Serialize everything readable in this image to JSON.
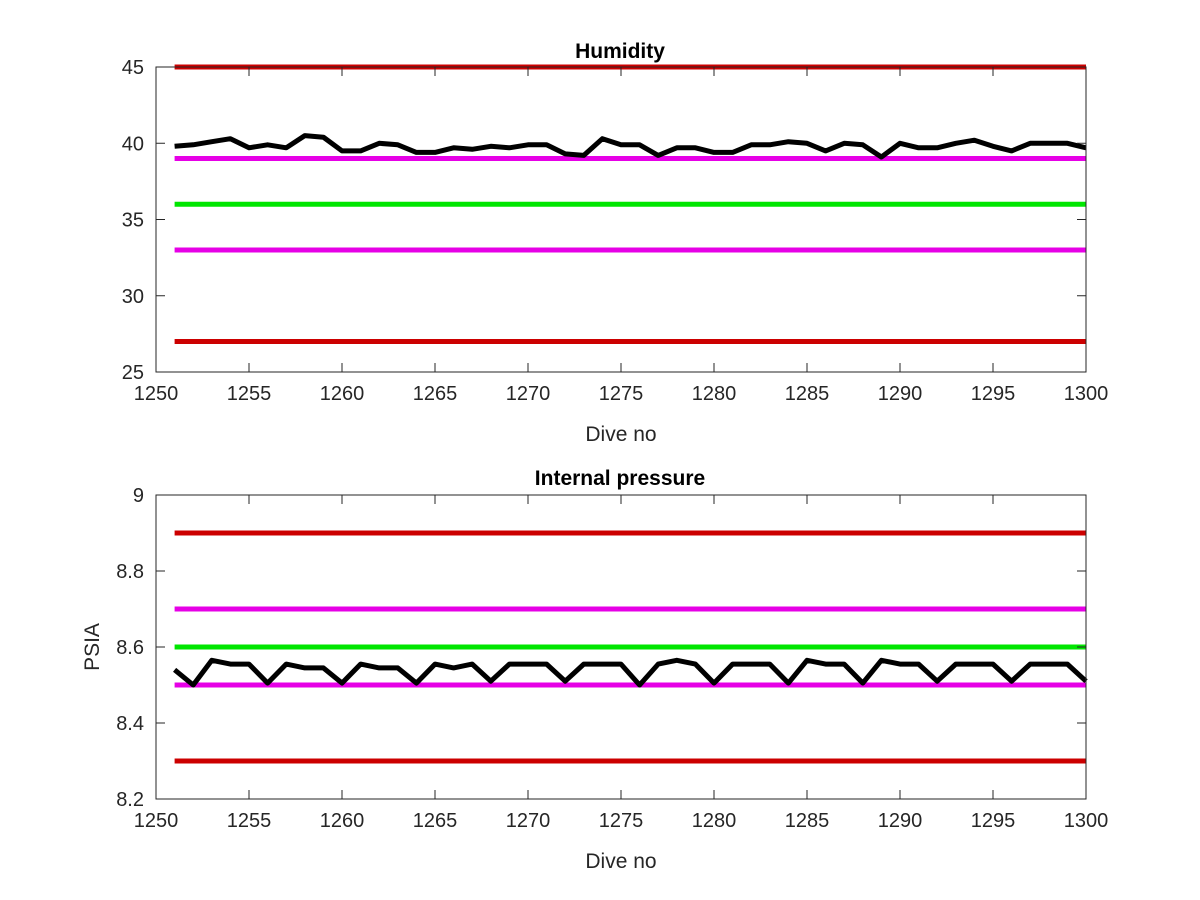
{
  "chart_data": [
    {
      "type": "line",
      "title": "Humidity",
      "xlabel": "Dive no",
      "ylabel": "",
      "xlim": [
        1250,
        1300
      ],
      "ylim": [
        25,
        45
      ],
      "xticks": [
        1250,
        1255,
        1260,
        1265,
        1270,
        1275,
        1280,
        1285,
        1290,
        1295,
        1300
      ],
      "yticks": [
        25,
        30,
        35,
        40,
        45
      ],
      "grid": false,
      "reference_lines": [
        {
          "y": 45,
          "color": "#cc0000"
        },
        {
          "y": 39,
          "color": "#e600e6"
        },
        {
          "y": 36,
          "color": "#00e600"
        },
        {
          "y": 33,
          "color": "#e600e6"
        },
        {
          "y": 27,
          "color": "#cc0000"
        }
      ],
      "series": [
        {
          "color": "#000000",
          "x": [
            1251,
            1252,
            1253,
            1254,
            1255,
            1256,
            1257,
            1258,
            1259,
            1260,
            1261,
            1262,
            1263,
            1264,
            1265,
            1266,
            1267,
            1268,
            1269,
            1270,
            1271,
            1272,
            1273,
            1274,
            1275,
            1276,
            1277,
            1278,
            1279,
            1280,
            1281,
            1282,
            1283,
            1284,
            1285,
            1286,
            1287,
            1288,
            1289,
            1290,
            1291,
            1292,
            1293,
            1294,
            1295,
            1296,
            1297,
            1298,
            1299,
            1300
          ],
          "values": [
            39.8,
            39.9,
            40.1,
            40.3,
            39.7,
            39.9,
            39.7,
            40.5,
            40.4,
            39.5,
            39.5,
            40.0,
            39.9,
            39.4,
            39.4,
            39.7,
            39.6,
            39.8,
            39.7,
            39.9,
            39.9,
            39.3,
            39.2,
            40.3,
            39.9,
            39.9,
            39.2,
            39.7,
            39.7,
            39.4,
            39.4,
            39.9,
            39.9,
            40.1,
            40.0,
            39.5,
            40.0,
            39.9,
            39.1,
            40.0,
            39.7,
            39.7,
            40.0,
            40.2,
            39.8,
            39.5,
            40.0,
            40.0,
            40.0,
            39.7
          ]
        }
      ]
    },
    {
      "type": "line",
      "title": "Internal pressure",
      "xlabel": "Dive no",
      "ylabel": "PSIA",
      "xlim": [
        1250,
        1300
      ],
      "ylim": [
        8.2,
        9
      ],
      "xticks": [
        1250,
        1255,
        1260,
        1265,
        1270,
        1275,
        1280,
        1285,
        1290,
        1295,
        1300
      ],
      "yticks": [
        8.2,
        8.4,
        8.6,
        8.8,
        9
      ],
      "grid": false,
      "reference_lines": [
        {
          "y": 8.9,
          "color": "#cc0000"
        },
        {
          "y": 8.7,
          "color": "#e600e6"
        },
        {
          "y": 8.6,
          "color": "#00e600"
        },
        {
          "y": 8.5,
          "color": "#e600e6"
        },
        {
          "y": 8.3,
          "color": "#cc0000"
        }
      ],
      "series": [
        {
          "color": "#000000",
          "x": [
            1251,
            1252,
            1253,
            1254,
            1255,
            1256,
            1257,
            1258,
            1259,
            1260,
            1261,
            1262,
            1263,
            1264,
            1265,
            1266,
            1267,
            1268,
            1269,
            1270,
            1271,
            1272,
            1273,
            1274,
            1275,
            1276,
            1277,
            1278,
            1279,
            1280,
            1281,
            1282,
            1283,
            1284,
            1285,
            1286,
            1287,
            1288,
            1289,
            1290,
            1291,
            1292,
            1293,
            1294,
            1295,
            1296,
            1297,
            1298,
            1299,
            1300
          ],
          "values": [
            8.54,
            8.5,
            8.565,
            8.555,
            8.555,
            8.505,
            8.555,
            8.545,
            8.545,
            8.505,
            8.555,
            8.545,
            8.545,
            8.505,
            8.555,
            8.545,
            8.555,
            8.51,
            8.555,
            8.555,
            8.555,
            8.51,
            8.555,
            8.555,
            8.555,
            8.5,
            8.555,
            8.565,
            8.555,
            8.505,
            8.555,
            8.555,
            8.555,
            8.505,
            8.565,
            8.555,
            8.555,
            8.505,
            8.565,
            8.555,
            8.555,
            8.51,
            8.555,
            8.555,
            8.555,
            8.51,
            8.555,
            8.555,
            8.555,
            8.51
          ]
        }
      ]
    }
  ]
}
